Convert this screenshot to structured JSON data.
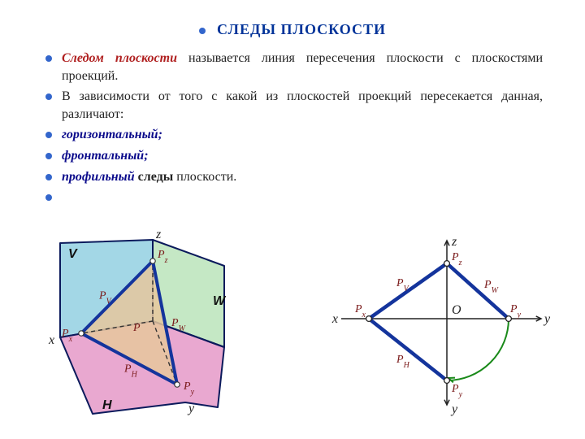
{
  "title": "СЛЕДЫ  ПЛОСКОСТИ",
  "para1": {
    "lead": "Следом плоскости",
    "rest": " называется линия пересечения плоскости с плоскостями проекций."
  },
  "para2": "В зависимости от того с какой из плоскостей проекций пересекается данная, различают:",
  "items": [
    {
      "name": " горизонтальный;",
      "tail": ""
    },
    {
      "name": " фронтальный;",
      "tail": ""
    },
    {
      "name": " профильный ",
      "tail_bold": "следы",
      "tail_rest": " плоскости."
    }
  ],
  "fig3d": {
    "bg": "#ffffff",
    "plane_V": "#a3d7e6",
    "plane_W": "#c5e8c5",
    "plane_H": "#e9a8d0",
    "plane_P": "#e6c79c",
    "plane_P_opacity": 0.85,
    "edge_color": "#0b1a5c",
    "edge_width": 2,
    "trace_color": "#14349c",
    "trace_width": 4,
    "dash_color": "#333333",
    "point_fill": "#ffffff",
    "point_stroke": "#333333",
    "labels": {
      "V": "V",
      "W": "W",
      "H": "H",
      "x": "x",
      "y": "y",
      "z": "z",
      "Px": "Pₓ",
      "Py": "Pᵧ",
      "Pz": "P_z",
      "PV": "Pᵥ",
      "PH": "Pₕ",
      "PW": "P_W",
      "P": "P"
    }
  },
  "fig2d": {
    "axis_color": "#222222",
    "axis_width": 1.5,
    "trace_color": "#14349c",
    "trace_width": 4.5,
    "arc_color": "#1a8a1a",
    "arc_width": 2,
    "point_fill": "#ffffff",
    "point_stroke": "#222222",
    "labels": {
      "x": "x",
      "y1": "y",
      "y2": "y",
      "z": "z",
      "O": "O",
      "Px": "Pₓ",
      "Py1": "Pᵧ",
      "Py2": "Pᵧ",
      "Pz": "P_z",
      "PV": "Pᵥ",
      "PH": "Pₕ",
      "PW": "P_W"
    }
  }
}
